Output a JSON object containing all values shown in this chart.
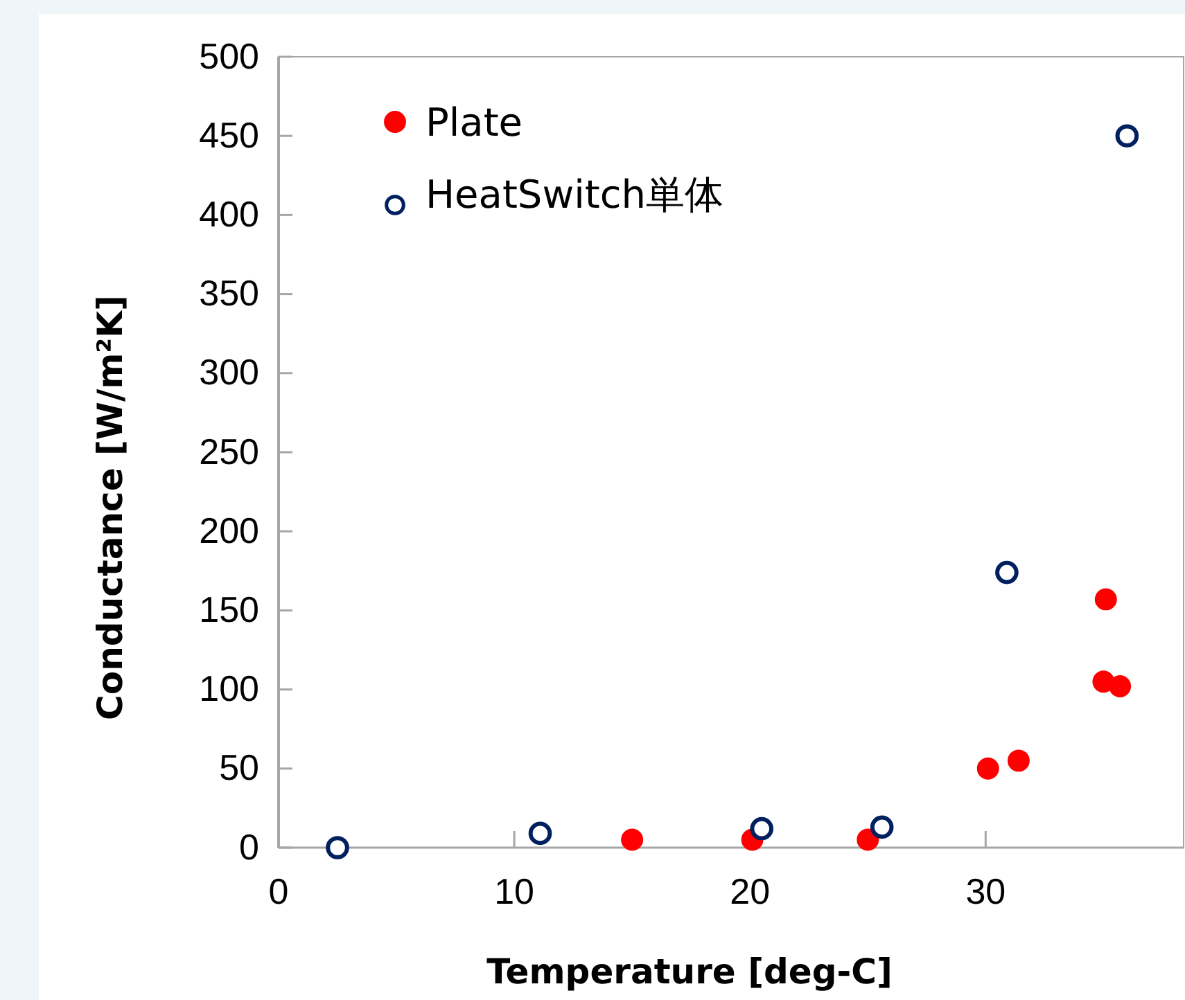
{
  "chart_data": {
    "type": "scatter",
    "xlabel": "Temperature [deg-C]",
    "ylabel": "Conductance [W/m²K]",
    "xlim": [
      0,
      38.4
    ],
    "xticks": [
      0,
      10,
      20,
      30
    ],
    "ylim": [
      0,
      500
    ],
    "yticks": [
      0,
      50,
      100,
      150,
      200,
      250,
      300,
      350,
      400,
      450,
      500
    ],
    "grid": false,
    "legend": "top left",
    "series": [
      {
        "name": "Plate",
        "color": "#ff0000",
        "marker": "circle",
        "x": [
          15,
          20.1,
          25,
          30.1,
          31.4,
          35.1,
          35,
          35.7
        ],
        "values": [
          5,
          5,
          5,
          50,
          55,
          157,
          105,
          102
        ]
      },
      {
        "name": "HeatSwitch単体",
        "color": "#002060",
        "marker": "circle",
        "x": [
          2.5,
          11.1,
          20.5,
          25.6,
          30.9,
          36
        ],
        "values": [
          0,
          9,
          12,
          13,
          174,
          450
        ]
      }
    ]
  }
}
